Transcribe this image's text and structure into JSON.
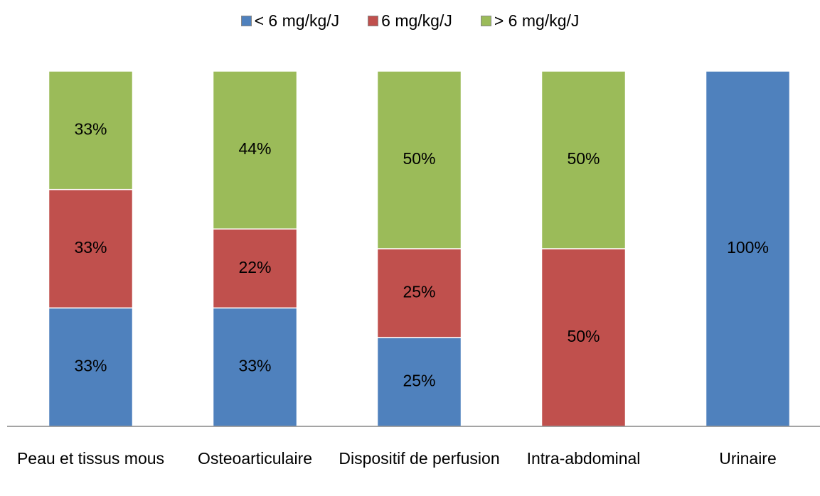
{
  "chart_data": {
    "type": "bar",
    "stacking": "percent",
    "categories": [
      "Peau et tissus mous",
      "Osteoarticulaire",
      "Dispositif de perfusion",
      "Intra-abdominal",
      "Urinaire"
    ],
    "series": [
      {
        "name": "< 6 mg/kg/J",
        "color": "#4f81bd",
        "values": [
          33,
          33,
          25,
          0,
          100
        ],
        "value_labels": [
          "33%",
          "33%",
          "25%",
          null,
          "100%"
        ]
      },
      {
        "name": "6 mg/kg/J",
        "color": "#c0504d",
        "values": [
          33,
          22,
          25,
          50,
          0
        ],
        "value_labels": [
          "33%",
          "22%",
          "25%",
          "50%",
          null
        ]
      },
      {
        "name": "> 6 mg/kg/J",
        "color": "#9bbb59",
        "values": [
          33,
          44,
          50,
          50,
          0
        ],
        "value_labels": [
          "33%",
          "44%",
          "50%",
          "50%",
          null
        ]
      }
    ],
    "legend": "top"
  }
}
